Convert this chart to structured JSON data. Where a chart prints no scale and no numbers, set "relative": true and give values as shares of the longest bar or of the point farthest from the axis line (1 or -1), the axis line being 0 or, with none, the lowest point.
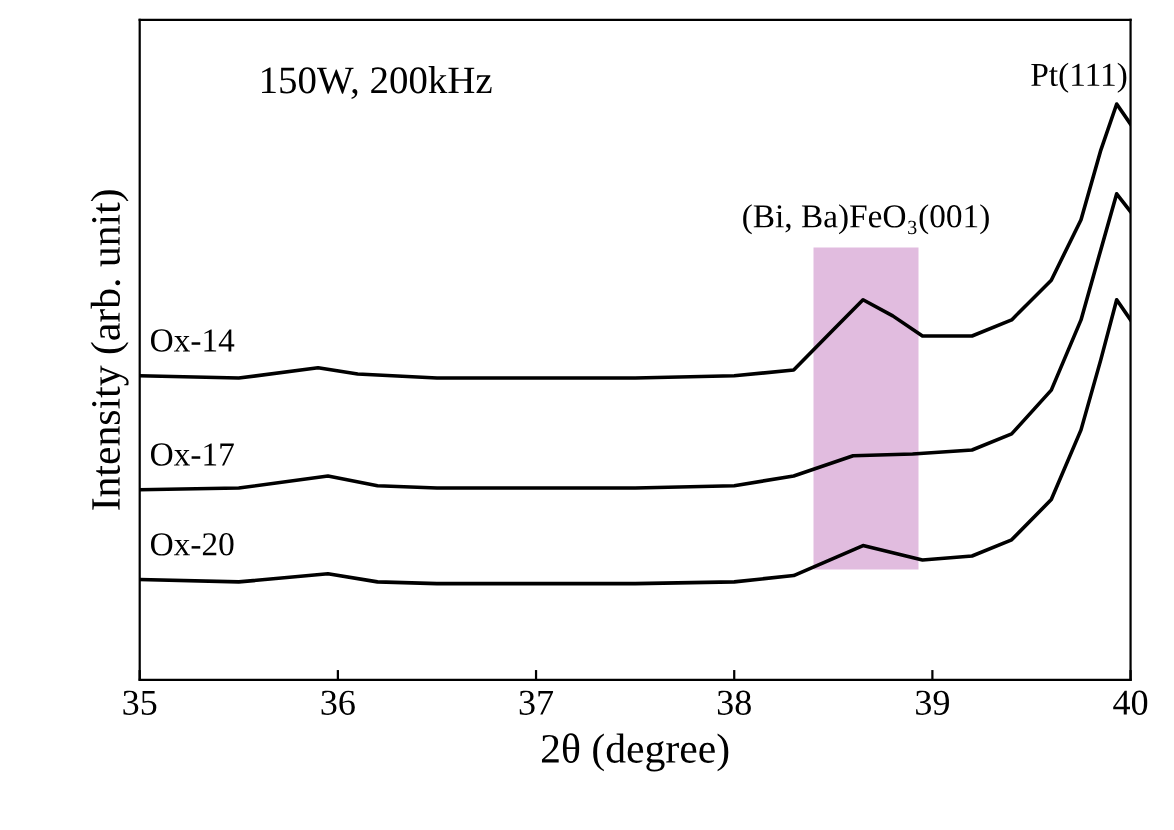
{
  "chart_data": {
    "type": "line",
    "relative": true,
    "xlabel": "2θ (degree)",
    "ylabel": "Intensity (arb. unit)",
    "xlim": [
      35,
      40
    ],
    "xticks": [
      35,
      36,
      37,
      38,
      39,
      40
    ],
    "grid": false,
    "legend": false,
    "marker": "none",
    "line_style": "solid",
    "annotations": [
      "150W, 200kHz",
      {
        "text": "Pt(111)",
        "x": 39.93,
        "y": 1
      }
    ],
    "bands": [
      {
        "axis": "x",
        "from": 38.4,
        "to": 38.93,
        "label": "(Bi, Ba)FeO₃(001)",
        "color": "#dcb0d9"
      }
    ],
    "series": [
      {
        "name": "Ox-14",
        "color": "#000000",
        "x": [
          35.0,
          35.5,
          35.9,
          36.1,
          36.5,
          37,
          37.5,
          38,
          38.3,
          38.5,
          38.65,
          38.8,
          38.95,
          39.2,
          39.4,
          39.6,
          39.75,
          39.85,
          39.93,
          40
        ],
        "values": [
          0.528,
          0.524,
          0.542,
          0.531,
          0.524,
          0.524,
          0.524,
          0.528,
          0.538,
          0.608,
          0.66,
          0.632,
          0.597,
          0.597,
          0.625,
          0.694,
          0.799,
          0.92,
          1,
          0.965
        ]
      },
      {
        "name": "Ox-17",
        "color": "#000000",
        "x": [
          35,
          35.5,
          35.95,
          36.2,
          36.5,
          37,
          37.5,
          38,
          38.3,
          38.6,
          38.9,
          39.2,
          39.4,
          39.6,
          39.75,
          39.85,
          39.93,
          40
        ],
        "values": [
          0.33,
          0.333,
          0.354,
          0.337,
          0.333,
          0.333,
          0.333,
          0.337,
          0.354,
          0.389,
          0.392,
          0.399,
          0.427,
          0.503,
          0.625,
          0.747,
          0.844,
          0.813
        ]
      },
      {
        "name": "Ox-20",
        "color": "#000000",
        "x": [
          35,
          35.5,
          35.95,
          36.2,
          36.5,
          37,
          37.5,
          38,
          38.3,
          38.65,
          38.95,
          39.2,
          39.4,
          39.6,
          39.75,
          39.85,
          39.93,
          40
        ],
        "values": [
          0.174,
          0.17,
          0.184,
          0.17,
          0.167,
          0.167,
          0.167,
          0.17,
          0.181,
          0.233,
          0.208,
          0.215,
          0.243,
          0.313,
          0.434,
          0.556,
          0.66,
          0.625
        ]
      }
    ]
  }
}
